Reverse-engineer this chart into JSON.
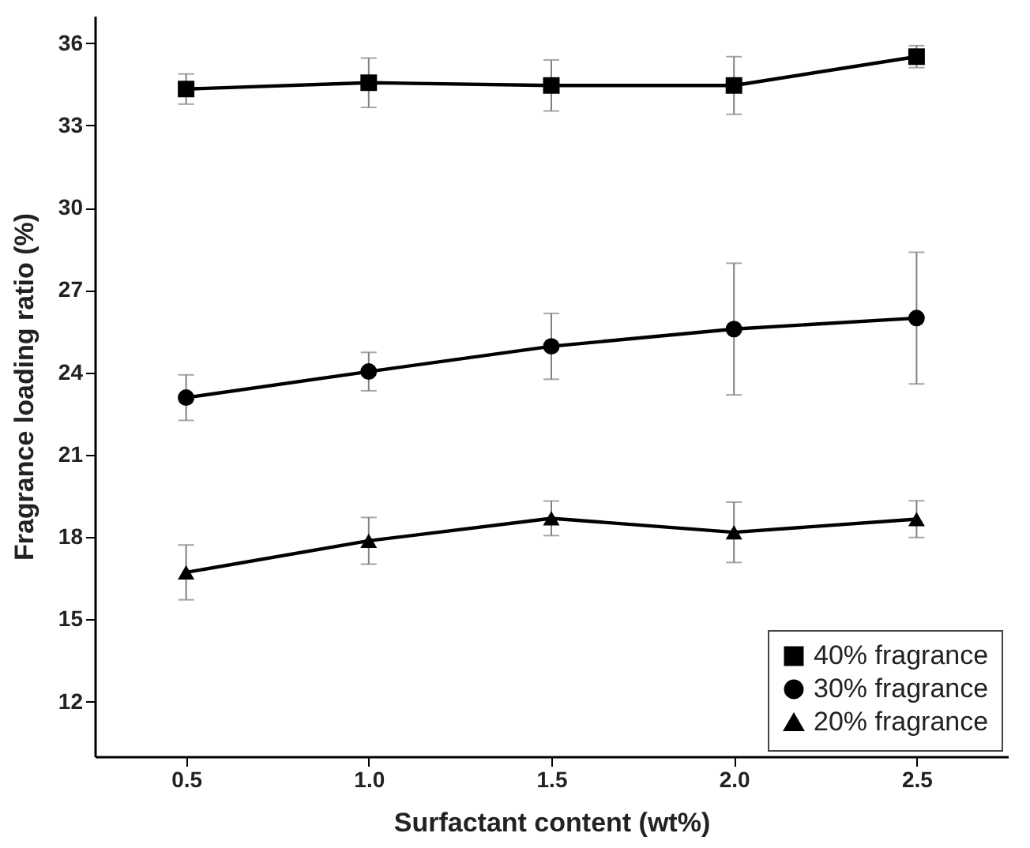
{
  "chart_data": {
    "type": "line",
    "xlabel": "Surfactant content (wt%)",
    "ylabel": "Fragrance loading ratio (%)",
    "x": [
      0.5,
      1.0,
      1.5,
      2.0,
      2.5
    ],
    "xlim": [
      0.25,
      2.75
    ],
    "xticks": [
      {
        "value": 0.5,
        "label": "0.5"
      },
      {
        "value": 1.0,
        "label": "1.0"
      },
      {
        "value": 1.5,
        "label": "1.5"
      },
      {
        "value": 2.0,
        "label": "2.0"
      },
      {
        "value": 2.5,
        "label": "2.5"
      }
    ],
    "ylim": [
      10,
      37
    ],
    "yticks": [
      12,
      15,
      18,
      21,
      24,
      27,
      30,
      33,
      36
    ],
    "legend": "bottom right",
    "line_style": "solid",
    "series": [
      {
        "name": "40% fragrance",
        "color": "#000000",
        "marker": "square",
        "values": [
          34.33,
          34.56,
          34.46,
          34.46,
          35.51
        ],
        "errors": [
          0.55,
          0.9,
          0.93,
          1.05,
          0.4
        ]
      },
      {
        "name": "30% fragrance",
        "color": "#000000",
        "marker": "circle",
        "values": [
          23.08,
          24.03,
          24.95,
          25.58,
          25.98
        ],
        "errors": [
          0.83,
          0.7,
          1.2,
          2.4,
          2.4
        ]
      },
      {
        "name": "20% fragrance",
        "color": "#000000",
        "marker": "triangle",
        "values": [
          16.71,
          17.86,
          18.68,
          18.17,
          18.65
        ],
        "errors": [
          1.0,
          0.85,
          0.63,
          1.1,
          0.67
        ]
      }
    ]
  }
}
